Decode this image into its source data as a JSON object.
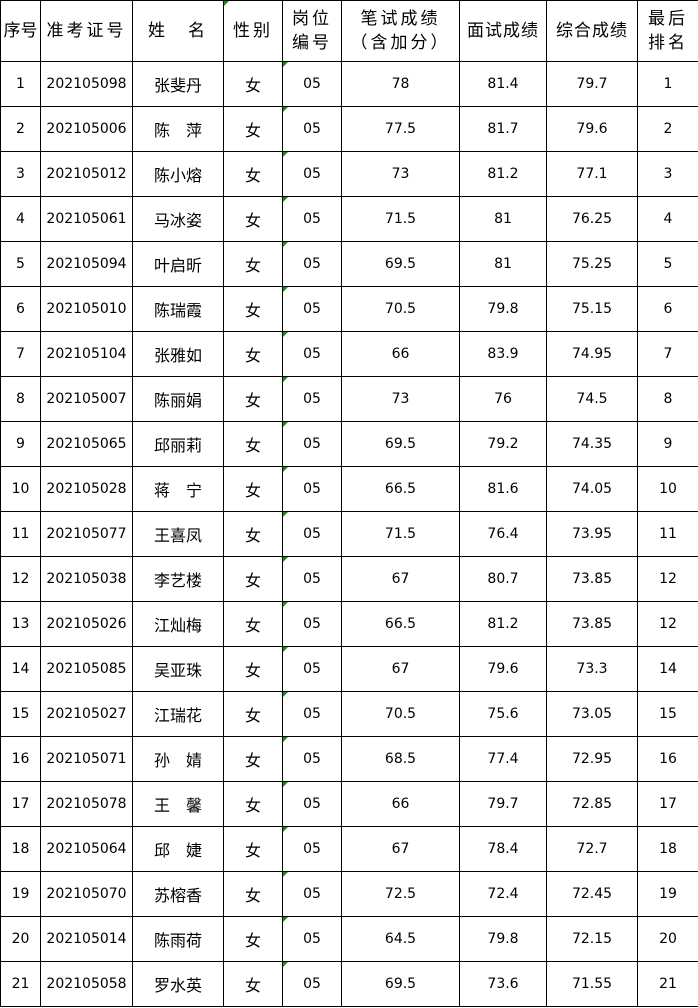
{
  "headers": [
    "序号",
    "准考证号",
    "姓　名",
    "性别",
    "岗位\n编号",
    "笔试成绩\n（含加分）",
    "面试成绩",
    "综合成绩",
    "最后\n排名"
  ],
  "marker_color": "#1a8a1a",
  "rows": [
    [
      "1",
      "202105098",
      "张斐丹",
      "女",
      "05",
      "78",
      "81.4",
      "79.7",
      "1"
    ],
    [
      "2",
      "202105006",
      "陈　萍",
      "女",
      "05",
      "77.5",
      "81.7",
      "79.6",
      "2"
    ],
    [
      "3",
      "202105012",
      "陈小熔",
      "女",
      "05",
      "73",
      "81.2",
      "77.1",
      "3"
    ],
    [
      "4",
      "202105061",
      "马冰姿",
      "女",
      "05",
      "71.5",
      "81",
      "76.25",
      "4"
    ],
    [
      "5",
      "202105094",
      "叶启昕",
      "女",
      "05",
      "69.5",
      "81",
      "75.25",
      "5"
    ],
    [
      "6",
      "202105010",
      "陈瑞霞",
      "女",
      "05",
      "70.5",
      "79.8",
      "75.15",
      "6"
    ],
    [
      "7",
      "202105104",
      "张雅如",
      "女",
      "05",
      "66",
      "83.9",
      "74.95",
      "7"
    ],
    [
      "8",
      "202105007",
      "陈丽娟",
      "女",
      "05",
      "73",
      "76",
      "74.5",
      "8"
    ],
    [
      "9",
      "202105065",
      "邱丽莉",
      "女",
      "05",
      "69.5",
      "79.2",
      "74.35",
      "9"
    ],
    [
      "10",
      "202105028",
      "蒋　宁",
      "女",
      "05",
      "66.5",
      "81.6",
      "74.05",
      "10"
    ],
    [
      "11",
      "202105077",
      "王喜凤",
      "女",
      "05",
      "71.5",
      "76.4",
      "73.95",
      "11"
    ],
    [
      "12",
      "202105038",
      "李艺楼",
      "女",
      "05",
      "67",
      "80.7",
      "73.85",
      "12"
    ],
    [
      "13",
      "202105026",
      "江灿梅",
      "女",
      "05",
      "66.5",
      "81.2",
      "73.85",
      "12"
    ],
    [
      "14",
      "202105085",
      "吴亚珠",
      "女",
      "05",
      "67",
      "79.6",
      "73.3",
      "14"
    ],
    [
      "15",
      "202105027",
      "江瑞花",
      "女",
      "05",
      "70.5",
      "75.6",
      "73.05",
      "15"
    ],
    [
      "16",
      "202105071",
      "孙　婧",
      "女",
      "05",
      "68.5",
      "77.4",
      "72.95",
      "16"
    ],
    [
      "17",
      "202105078",
      "王　馨",
      "女",
      "05",
      "66",
      "79.7",
      "72.85",
      "17"
    ],
    [
      "18",
      "202105064",
      "邱　婕",
      "女",
      "05",
      "67",
      "78.4",
      "72.7",
      "18"
    ],
    [
      "19",
      "202105070",
      "苏榕香",
      "女",
      "05",
      "72.5",
      "72.4",
      "72.45",
      "19"
    ],
    [
      "20",
      "202105014",
      "陈雨荷",
      "女",
      "05",
      "64.5",
      "79.8",
      "72.15",
      "20"
    ],
    [
      "21",
      "202105058",
      "罗水英",
      "女",
      "05",
      "69.5",
      "73.6",
      "71.55",
      "21"
    ]
  ]
}
